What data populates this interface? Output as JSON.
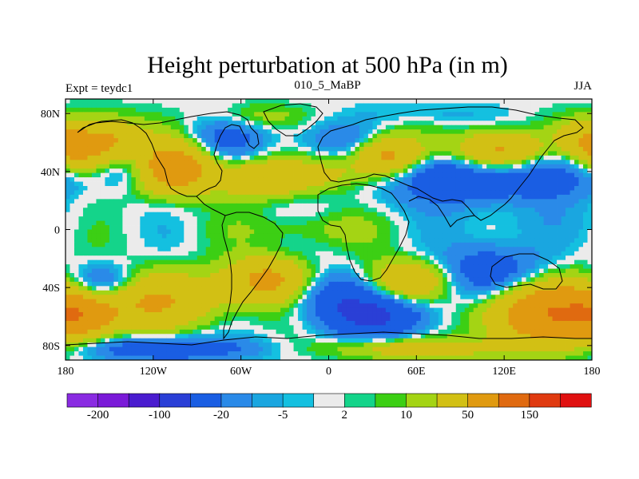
{
  "chart_data": {
    "type": "heatmap",
    "title": "Height perturbation at 500 hPa (in m)",
    "left_string": "Expt = teydc1",
    "center_string": "010_5_MaBP",
    "right_string": "JJA",
    "x_ticks": [
      {
        "value": -180,
        "label": "180"
      },
      {
        "value": -120,
        "label": "120W"
      },
      {
        "value": -60,
        "label": "60W"
      },
      {
        "value": 0,
        "label": "0"
      },
      {
        "value": 60,
        "label": "60E"
      },
      {
        "value": 120,
        "label": "120E"
      },
      {
        "value": 180,
        "label": "180"
      }
    ],
    "y_ticks": [
      {
        "value": 80,
        "label": "80N"
      },
      {
        "value": 40,
        "label": "40N"
      },
      {
        "value": 0,
        "label": "0"
      },
      {
        "value": -40,
        "label": "40S"
      },
      {
        "value": -80,
        "label": "80S"
      }
    ],
    "xlim": [
      -180,
      180
    ],
    "ylim": [
      -90,
      90
    ],
    "contour_levels": [
      -200,
      -150,
      -100,
      -50,
      -20,
      -10,
      -5,
      -2,
      2,
      5,
      10,
      20,
      50,
      100,
      150,
      200
    ],
    "colorbar_labels": [
      {
        "level_index": 0,
        "label": "-200"
      },
      {
        "level_index": 2,
        "label": "-100"
      },
      {
        "level_index": 4,
        "label": "-20"
      },
      {
        "level_index": 6,
        "label": "-5"
      },
      {
        "level_index": 8,
        "label": "2"
      },
      {
        "level_index": 10,
        "label": "10"
      },
      {
        "level_index": 12,
        "label": "50"
      },
      {
        "level_index": 14,
        "label": "150"
      }
    ],
    "colors": [
      "#8a2be2",
      "#7a1ad8",
      "#4a1ccf",
      "#2a3fd6",
      "#1a5ee3",
      "#2a8ae8",
      "#1aa6e0",
      "#14c0e0",
      "#ebebeb",
      "#14d48a",
      "#3ccf14",
      "#a4d414",
      "#d2c014",
      "#e09a10",
      "#e06a10",
      "#e03a10",
      "#e01010"
    ],
    "anomalies": [
      {
        "lon": -155,
        "lat": 58,
        "sx": 20,
        "sy": 12,
        "amp": 70
      },
      {
        "lon": -105,
        "lat": 42,
        "sx": 18,
        "sy": 12,
        "amp": 80
      },
      {
        "lon": -45,
        "lat": 35,
        "sx": 22,
        "sy": 9,
        "amp": 45
      },
      {
        "lon": -140,
        "lat": 45,
        "sx": 14,
        "sy": 10,
        "amp": -30
      },
      {
        "lon": -70,
        "lat": 62,
        "sx": 18,
        "sy": 10,
        "amp": -25
      },
      {
        "lon": 10,
        "lat": 62,
        "sx": 25,
        "sy": 8,
        "amp": -20
      },
      {
        "lon": 40,
        "lat": 52,
        "sx": 16,
        "sy": 10,
        "amp": 60
      },
      {
        "lon": 75,
        "lat": 42,
        "sx": 18,
        "sy": 7,
        "amp": -20
      },
      {
        "lon": 117,
        "lat": 55,
        "sx": 20,
        "sy": 9,
        "amp": 60
      },
      {
        "lon": 90,
        "lat": 30,
        "sx": 35,
        "sy": 10,
        "amp": -35
      },
      {
        "lon": 155,
        "lat": 38,
        "sx": 22,
        "sy": 12,
        "amp": -30
      },
      {
        "lon": 172,
        "lat": 62,
        "sx": 12,
        "sy": 10,
        "amp": 25
      },
      {
        "lon": -175,
        "lat": 55,
        "sx": 10,
        "sy": 10,
        "amp": 25
      },
      {
        "lon": 0,
        "lat": 38,
        "sx": 22,
        "sy": 8,
        "amp": 20
      },
      {
        "lon": -10,
        "lat": 0,
        "sx": 40,
        "sy": 8,
        "amp": 12
      },
      {
        "lon": 120,
        "lat": 5,
        "sx": 40,
        "sy": 7,
        "amp": -5
      },
      {
        "lon": -155,
        "lat": -38,
        "sx": 18,
        "sy": 10,
        "amp": -50
      },
      {
        "lon": -130,
        "lat": -48,
        "sx": 40,
        "sy": 14,
        "amp": 55
      },
      {
        "lon": -170,
        "lat": -60,
        "sx": 15,
        "sy": 10,
        "amp": 50
      },
      {
        "lon": -40,
        "lat": -35,
        "sx": 20,
        "sy": 11,
        "amp": 60
      },
      {
        "lon": 5,
        "lat": -45,
        "sx": 22,
        "sy": 12,
        "amp": -35
      },
      {
        "lon": 35,
        "lat": -60,
        "sx": 25,
        "sy": 10,
        "amp": -50
      },
      {
        "lon": 55,
        "lat": -35,
        "sx": 20,
        "sy": 10,
        "amp": 50
      },
      {
        "lon": 110,
        "lat": -30,
        "sx": 25,
        "sy": 14,
        "amp": -40
      },
      {
        "lon": 150,
        "lat": -58,
        "sx": 30,
        "sy": 15,
        "amp": 90
      },
      {
        "lon": 60,
        "lat": -82,
        "sx": 40,
        "sy": 5,
        "amp": 35
      },
      {
        "lon": -110,
        "lat": -82,
        "sx": 40,
        "sy": 6,
        "amp": -40
      },
      {
        "lon": -50,
        "lat": 78,
        "sx": 20,
        "sy": 6,
        "amp": 15
      },
      {
        "lon": 70,
        "lat": 80,
        "sx": 25,
        "sy": 5,
        "amp": -8
      }
    ]
  }
}
